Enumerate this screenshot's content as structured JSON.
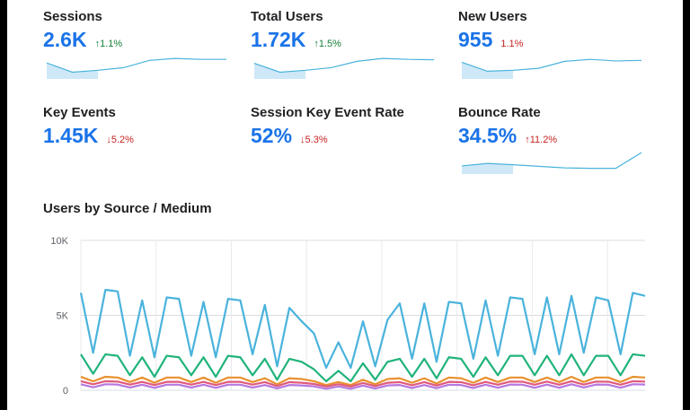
{
  "kpis": [
    {
      "title": "Sessions",
      "value": "2.6K",
      "delta": "1.1%",
      "direction": "up",
      "color": "#188038",
      "spark": [
        0.72,
        0.25,
        0.35,
        0.48,
        0.85,
        0.95,
        0.9,
        0.9
      ]
    },
    {
      "title": "Total Users",
      "value": "1.72K",
      "delta": "1.5%",
      "direction": "up",
      "color": "#188038",
      "spark": [
        0.7,
        0.25,
        0.35,
        0.48,
        0.8,
        0.95,
        0.9,
        0.88
      ]
    },
    {
      "title": "New Users",
      "value": "955",
      "delta": "1.1%",
      "direction": "none",
      "color": "#c5221f",
      "spark": [
        0.75,
        0.3,
        0.35,
        0.45,
        0.8,
        0.9,
        0.82,
        0.85
      ]
    },
    {
      "title": "Key Events",
      "value": "1.45K",
      "delta": "5.2%",
      "direction": "down",
      "color": "#c5221f",
      "spark": []
    },
    {
      "title": "Session Key Event Rate",
      "value": "52%",
      "delta": "5.3%",
      "direction": "down",
      "color": "#c5221f",
      "spark": []
    },
    {
      "title": "Bounce Rate",
      "value": "34.5%",
      "delta": "11.2%",
      "direction": "up",
      "color": "#c5221f",
      "spark": [
        0.32,
        0.45,
        0.38,
        0.3,
        0.22,
        0.2,
        0.2,
        1.0
      ]
    }
  ],
  "chart_title": "Users by Source / Medium",
  "chart_data": {
    "type": "line",
    "ylim": [
      0,
      10000
    ],
    "y_ticks": [
      "10K",
      "5K",
      "0"
    ],
    "y_tick_values": [
      10000,
      5000,
      0
    ],
    "grid": true,
    "series": [
      {
        "color": "#4ab3dc",
        "values": [
          6500,
          2500,
          6700,
          6600,
          2300,
          6000,
          2200,
          6200,
          6100,
          2300,
          5900,
          2200,
          6100,
          6000,
          2400,
          5700,
          1600,
          5500,
          4600,
          3800,
          1500,
          3200,
          1500,
          4600,
          1600,
          4700,
          5800,
          2100,
          5800,
          1900,
          5900,
          5800,
          2100,
          6000,
          2300,
          6200,
          6100,
          2400,
          6200,
          2400,
          6300,
          2500,
          6200,
          6000,
          2400,
          6500,
          6300
        ]
      },
      {
        "color": "#20b37a",
        "values": [
          2400,
          1100,
          2400,
          2300,
          1000,
          2200,
          900,
          2300,
          2200,
          1000,
          2200,
          900,
          2300,
          2200,
          1000,
          2100,
          700,
          2100,
          1900,
          1400,
          600,
          1300,
          600,
          1800,
          700,
          1900,
          2100,
          900,
          2100,
          800,
          2200,
          2100,
          900,
          2200,
          1000,
          2300,
          2300,
          1000,
          2300,
          1000,
          2400,
          1000,
          2300,
          2300,
          1000,
          2400,
          2300
        ]
      },
      {
        "color": "#e8912f",
        "values": [
          900,
          600,
          900,
          850,
          550,
          850,
          500,
          850,
          850,
          550,
          850,
          500,
          850,
          850,
          550,
          800,
          400,
          800,
          750,
          600,
          350,
          550,
          350,
          700,
          400,
          750,
          800,
          500,
          800,
          450,
          850,
          800,
          500,
          850,
          550,
          850,
          850,
          550,
          850,
          550,
          900,
          550,
          850,
          850,
          550,
          900,
          850
        ]
      },
      {
        "color": "#e05a7c",
        "values": [
          600,
          400,
          600,
          580,
          380,
          560,
          350,
          560,
          560,
          380,
          560,
          350,
          560,
          560,
          380,
          540,
          280,
          540,
          500,
          420,
          250,
          400,
          250,
          480,
          280,
          500,
          540,
          330,
          540,
          310,
          560,
          540,
          330,
          560,
          370,
          580,
          570,
          370,
          580,
          370,
          600,
          380,
          580,
          570,
          370,
          600,
          580
        ]
      },
      {
        "color": "#b678e0",
        "values": [
          400,
          200,
          400,
          380,
          180,
          370,
          160,
          370,
          370,
          180,
          370,
          160,
          370,
          370,
          180,
          350,
          120,
          350,
          320,
          260,
          100,
          250,
          100,
          310,
          120,
          320,
          350,
          150,
          350,
          140,
          370,
          350,
          150,
          370,
          170,
          380,
          370,
          170,
          380,
          170,
          400,
          180,
          380,
          370,
          170,
          400,
          380
        ]
      }
    ]
  }
}
